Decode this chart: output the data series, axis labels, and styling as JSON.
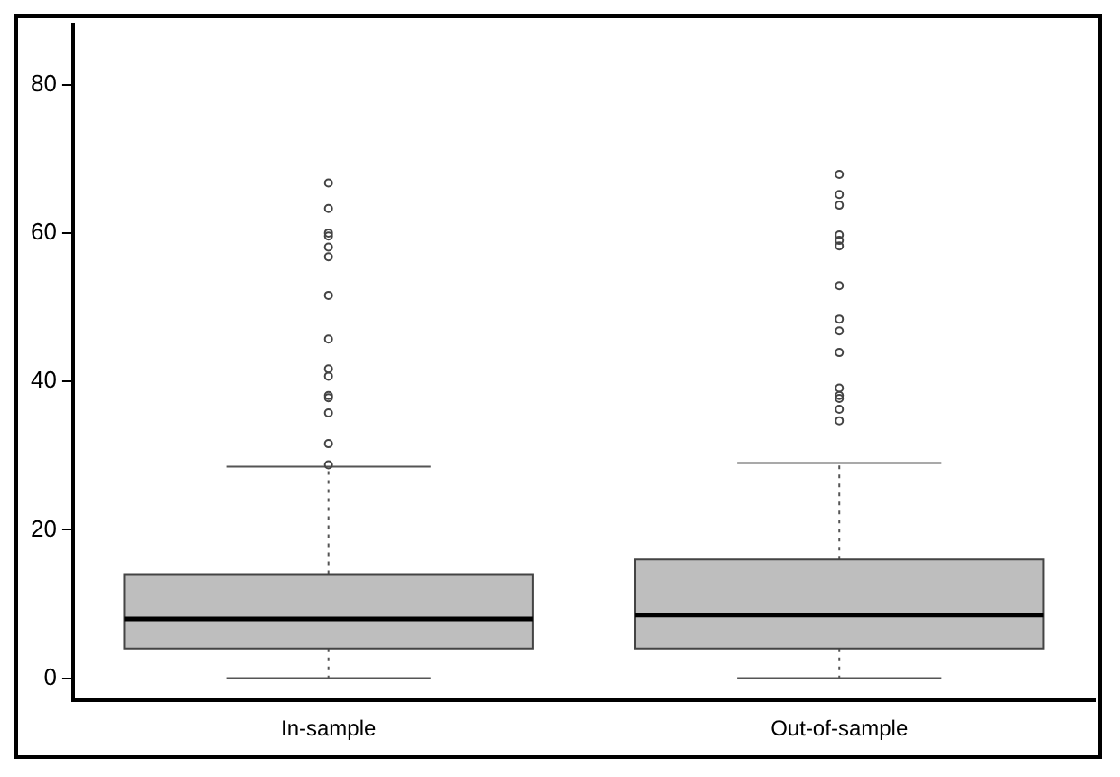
{
  "chart_data": {
    "type": "box",
    "categories": [
      "In-sample",
      "Out-of-sample"
    ],
    "color": "#bebebe",
    "boxes": [
      {
        "low": 0,
        "q1": 4,
        "median": 8,
        "q3": 14,
        "high": 28.5,
        "outliers": [
          28.75,
          31.6,
          35.75,
          37.8,
          38.1,
          40.7,
          41.7,
          45.7,
          51.6,
          56.8,
          58.1,
          59.6,
          60,
          63.3,
          66.75
        ]
      },
      {
        "low": 0,
        "q1": 4,
        "median": 8.5,
        "q3": 16,
        "high": 29,
        "outliers": [
          34.7,
          36.25,
          37.7,
          38.1,
          39.1,
          43.9,
          46.8,
          48.4,
          52.9,
          58.25,
          59,
          59.75,
          63.75,
          65.2,
          67.9
        ]
      }
    ],
    "ylim": [
      -3,
      88
    ],
    "yticks": [
      0,
      20,
      40,
      60,
      80
    ],
    "grid": false,
    "legend": false
  }
}
